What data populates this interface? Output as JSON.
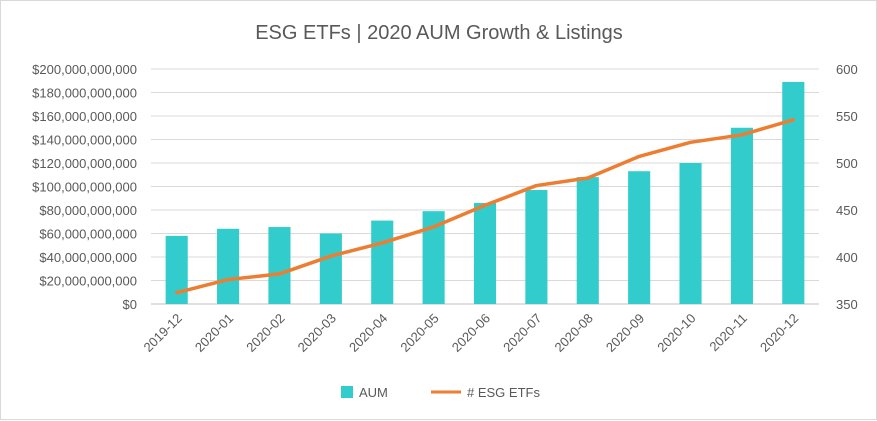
{
  "chart_data": {
    "type": "bar",
    "title": "ESG ETFs | 2020 AUM Growth & Listings",
    "categories": [
      "2019-12",
      "2020-01",
      "2020-02",
      "2020-03",
      "2020-04",
      "2020-05",
      "2020-06",
      "2020-07",
      "2020-08",
      "2020-09",
      "2020-10",
      "2020-11",
      "2020-12"
    ],
    "series": [
      {
        "name": "AUM",
        "type": "bar",
        "axis": "left",
        "color": "#33CCCC",
        "values": [
          58000000000,
          64000000000,
          65500000000,
          60000000000,
          71000000000,
          79000000000,
          86000000000,
          97000000000,
          108000000000,
          113000000000,
          120000000000,
          150000000000,
          189000000000
        ]
      },
      {
        "name": "# ESG ETFs",
        "type": "line",
        "axis": "right",
        "color": "#ED7D31",
        "values": [
          362,
          376,
          382,
          401,
          415,
          432,
          455,
          476,
          484,
          507,
          522,
          530,
          546
        ]
      }
    ],
    "y_left": {
      "min": 0,
      "max": 200000000000,
      "step": 20000000000,
      "tick_labels": [
        "$0",
        "$20,000,000,000",
        "$40,000,000,000",
        "$60,000,000,000",
        "$80,000,000,000",
        "$100,000,000,000",
        "$120,000,000,000",
        "$140,000,000,000",
        "$160,000,000,000",
        "$180,000,000,000",
        "$200,000,000,000"
      ]
    },
    "y_right": {
      "min": 350,
      "max": 600,
      "step": 50,
      "tick_labels": [
        "350",
        "400",
        "450",
        "500",
        "550",
        "600"
      ]
    },
    "grid": true,
    "legend_position": "bottom"
  }
}
